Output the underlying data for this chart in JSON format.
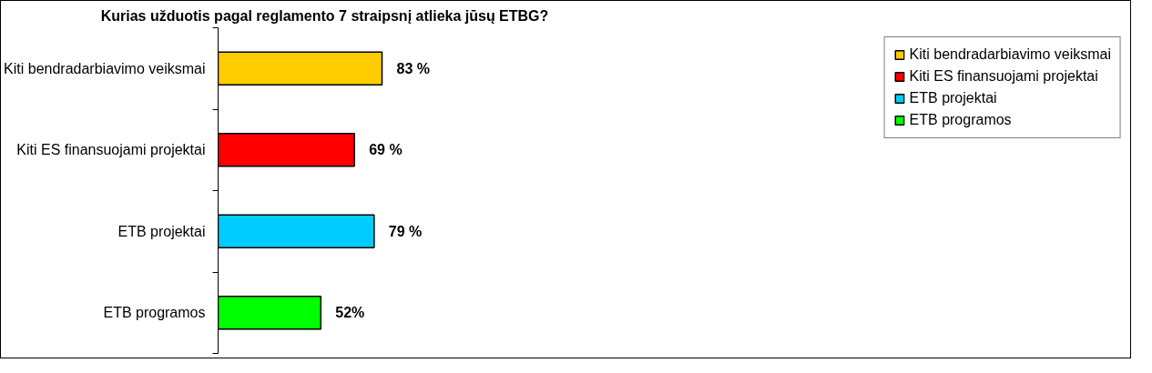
{
  "chart_data": {
    "type": "bar",
    "orientation": "horizontal",
    "title": "Kurias užduotis pagal reglamento 7 straipsnį atlieka jūsų ETBG?",
    "categories": [
      "Kiti bendradarbiavimo veiksmai",
      "Kiti ES finansuojami projektai",
      "ETB projektai",
      "ETB programos"
    ],
    "series": [
      {
        "name": "Kiti bendradarbiavimo veiksmai",
        "color": "#ffcc00",
        "values": [
          83,
          null,
          null,
          null
        ],
        "value_labels": [
          "83 %",
          null,
          null,
          null
        ]
      },
      {
        "name": "Kiti ES finansuojami projektai",
        "color": "#ff0000",
        "values": [
          null,
          69,
          null,
          null
        ],
        "value_labels": [
          null,
          "69 %",
          null,
          null
        ]
      },
      {
        "name": "ETB projektai",
        "color": "#00ccff",
        "values": [
          null,
          null,
          79,
          null
        ],
        "value_labels": [
          null,
          null,
          "79 %",
          null
        ]
      },
      {
        "name": "ETB programos",
        "color": "#00ff00",
        "values": [
          null,
          null,
          null,
          52
        ],
        "value_labels": [
          null,
          null,
          null,
          "52%"
        ]
      }
    ],
    "legend": "right",
    "grid": false
  }
}
